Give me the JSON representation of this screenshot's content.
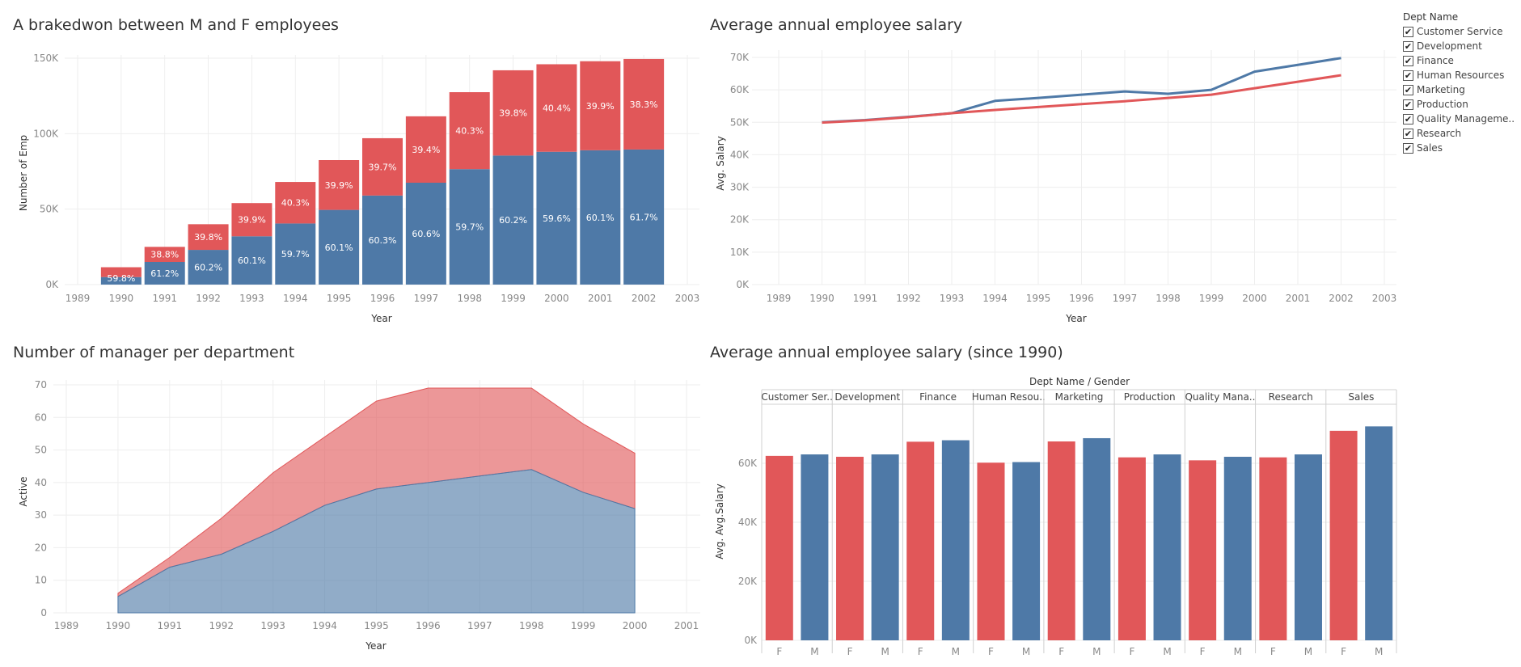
{
  "colors": {
    "male": "#4e79a7",
    "female": "#e15759",
    "grid": "#eeeeee",
    "axis": "#d0d0d0",
    "tick": "#888888"
  },
  "legend": {
    "title": "Dept Name",
    "items": [
      "Customer Service",
      "Development",
      "Finance",
      "Human Resources",
      "Marketing",
      "Production",
      "Quality Manageme..",
      "Research",
      "Sales"
    ],
    "check": "✔"
  },
  "chart_data": [
    {
      "id": "stacked",
      "type": "bar",
      "title": "A brakedwon between M and F employees",
      "xlabel": "Year",
      "ylabel": "Number of Emp",
      "x_ticks": [
        "1989",
        "1990",
        "1991",
        "1992",
        "1993",
        "1994",
        "1995",
        "1996",
        "1997",
        "1998",
        "1999",
        "2000",
        "2001",
        "2002",
        "2003"
      ],
      "y_ticks": [
        "0K",
        "50K",
        "100K",
        "150K"
      ],
      "ylim": [
        0,
        150000
      ],
      "categories": [
        1990,
        1991,
        1992,
        1993,
        1994,
        1995,
        1996,
        1997,
        1998,
        1999,
        2000,
        2001,
        2002
      ],
      "series": [
        {
          "key": "M",
          "values": [
            5000,
            15000,
            23000,
            32000,
            40500,
            49500,
            59000,
            67500,
            76500,
            85500,
            88000,
            89000,
            89500
          ],
          "labels": [
            "59.8%",
            "61.2%",
            "60.2%",
            "60.1%",
            "59.7%",
            "60.1%",
            "60.3%",
            "60.6%",
            "59.7%",
            "60.2%",
            "59.6%",
            "60.1%",
            "61.7%"
          ]
        },
        {
          "key": "F",
          "values": [
            6500,
            10000,
            17000,
            22000,
            27500,
            33000,
            38000,
            44000,
            51000,
            56500,
            58000,
            59000,
            60000
          ],
          "labels": [
            "",
            "38.8%",
            "39.8%",
            "39.9%",
            "40.3%",
            "39.9%",
            "39.7%",
            "39.4%",
            "40.3%",
            "39.8%",
            "40.4%",
            "39.9%",
            "38.3%"
          ]
        }
      ]
    },
    {
      "id": "salaryline",
      "type": "line",
      "title": "Average annual employee salary",
      "xlabel": "Year",
      "ylabel": "Avg. Salary",
      "x_ticks": [
        "1989",
        "1990",
        "1991",
        "1992",
        "1993",
        "1994",
        "1995",
        "1996",
        "1997",
        "1998",
        "1999",
        "2000",
        "2001",
        "2002",
        "2003"
      ],
      "y_ticks": [
        "0K",
        "10K",
        "20K",
        "30K",
        "40K",
        "50K",
        "60K",
        "70K"
      ],
      "ylim": [
        0,
        70000
      ],
      "x": [
        1990,
        1991,
        1992,
        1993,
        1994,
        1995,
        1996,
        1997,
        1998,
        1999,
        2000,
        2001,
        2002
      ],
      "series": [
        {
          "key": "M",
          "values": [
            50000,
            50700,
            51700,
            52800,
            56600,
            57500,
            58500,
            59500,
            58800,
            60000,
            65600,
            67700,
            69800
          ]
        },
        {
          "key": "F",
          "values": [
            49900,
            50600,
            51600,
            52800,
            53800,
            54700,
            55600,
            56500,
            57500,
            58500,
            60500,
            62500,
            64500
          ]
        }
      ]
    },
    {
      "id": "managers",
      "type": "area",
      "title": "Number of manager per department",
      "xlabel": "Year",
      "ylabel": "Active",
      "x_ticks": [
        "1989",
        "1990",
        "1991",
        "1992",
        "1993",
        "1994",
        "1995",
        "1996",
        "1997",
        "1998",
        "1999",
        "2000",
        "2001"
      ],
      "y_ticks": [
        "0",
        "10",
        "20",
        "30",
        "40",
        "50",
        "60",
        "70"
      ],
      "ylim": [
        0,
        70
      ],
      "x": [
        1990,
        1991,
        1992,
        1993,
        1994,
        1995,
        1996,
        1997,
        1998,
        1999,
        2000
      ],
      "series": [
        {
          "key": "M",
          "values": [
            5,
            14,
            18,
            25,
            33,
            38,
            40,
            42,
            44,
            37,
            32
          ]
        },
        {
          "key": "F",
          "values": [
            1,
            3,
            11,
            18,
            21,
            27,
            29,
            27,
            25,
            21,
            17
          ]
        }
      ]
    },
    {
      "id": "deptbars",
      "type": "bar",
      "title": "Average annual employee salary (since 1990)",
      "header": "Dept Name  /  Gender",
      "ylabel": "Avg. Avg.Salary",
      "y_ticks": [
        "0K",
        "20K",
        "40K",
        "60K"
      ],
      "ylim": [
        0,
        80000
      ],
      "departments": [
        "Customer Ser..",
        "Development",
        "Finance",
        "Human Resou..",
        "Marketing",
        "Production",
        "Quality Mana..",
        "Research",
        "Sales"
      ],
      "genders": [
        "F",
        "M"
      ],
      "values": [
        [
          62500,
          63000
        ],
        [
          62200,
          63000
        ],
        [
          67300,
          67800
        ],
        [
          60200,
          60400
        ],
        [
          67400,
          68500
        ],
        [
          62000,
          63000
        ],
        [
          61000,
          62200
        ],
        [
          62000,
          63000
        ],
        [
          71000,
          72500
        ]
      ]
    }
  ]
}
